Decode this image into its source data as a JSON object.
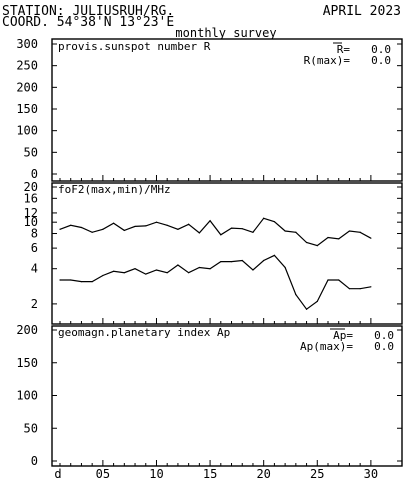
{
  "header": {
    "station": "STATION: JULIUSRUH/RG.",
    "coord": "COORD. 54°38'N 13°23'E",
    "month": "APRIL 2023",
    "survey": "monthly survey"
  },
  "chart_data": [
    {
      "type": "bar",
      "title": "provis.sunspot number R",
      "ylim": [
        0,
        300
      ],
      "yticks": [
        "300",
        "250",
        "200",
        "150",
        "100",
        "50",
        "0"
      ],
      "stats": [
        {
          "label": "R=",
          "value": "0.0",
          "overline": true
        },
        {
          "label": "R(max)=",
          "value": "0.0",
          "overline": false
        }
      ],
      "values": []
    },
    {
      "type": "line",
      "title": "foF2(max,min)/MHz",
      "yscale": "log",
      "ylim": [
        1.4,
        20
      ],
      "yticks": [
        "20",
        "16",
        "12",
        "10",
        "8",
        "6",
        "4",
        "2"
      ],
      "x": [
        1,
        2,
        3,
        4,
        5,
        6,
        7,
        8,
        9,
        10,
        11,
        12,
        13,
        14,
        15,
        16,
        17,
        18,
        19,
        20,
        21,
        22,
        23,
        24,
        25,
        26,
        27,
        28,
        29,
        30
      ],
      "series": [
        {
          "values": [
            8.7,
            9.4,
            9.0,
            8.2,
            8.7,
            9.8,
            8.5,
            9.2,
            9.3,
            10.0,
            9.4,
            8.7,
            9.6,
            8.1,
            10.3,
            7.8,
            8.9,
            8.8,
            8.2,
            10.8,
            10.1,
            8.4,
            8.2,
            6.7,
            6.3,
            7.4,
            7.2,
            8.4,
            8.2,
            7.3
          ]
        },
        {
          "values": [
            3.2,
            3.2,
            3.1,
            3.1,
            3.5,
            3.8,
            3.7,
            4.0,
            3.6,
            3.9,
            3.7,
            4.3,
            3.7,
            4.1,
            4.0,
            4.6,
            4.6,
            4.7,
            3.9,
            4.7,
            5.2,
            4.1,
            2.4,
            1.8,
            2.1,
            3.2,
            3.2,
            2.7,
            2.7,
            2.8
          ]
        }
      ]
    },
    {
      "type": "bar",
      "title": "geomagn.planetary index Ap",
      "ylim": [
        0,
        200
      ],
      "yticks": [
        "200",
        "150",
        "100",
        "50",
        "0"
      ],
      "stats": [
        {
          "label": "Ap=",
          "value": "0.0",
          "overline": true
        },
        {
          "label": "Ap(max)=",
          "value": "0.0",
          "overline": false
        }
      ],
      "values": []
    }
  ],
  "xaxis": {
    "ticks": [
      {
        "day": 0,
        "label": "d"
      },
      {
        "day": 5,
        "label": "05"
      },
      {
        "day": 10,
        "label": "10"
      },
      {
        "day": 15,
        "label": "15"
      },
      {
        "day": 20,
        "label": "20"
      },
      {
        "day": 25,
        "label": "25"
      },
      {
        "day": 30,
        "label": "30"
      }
    ]
  }
}
